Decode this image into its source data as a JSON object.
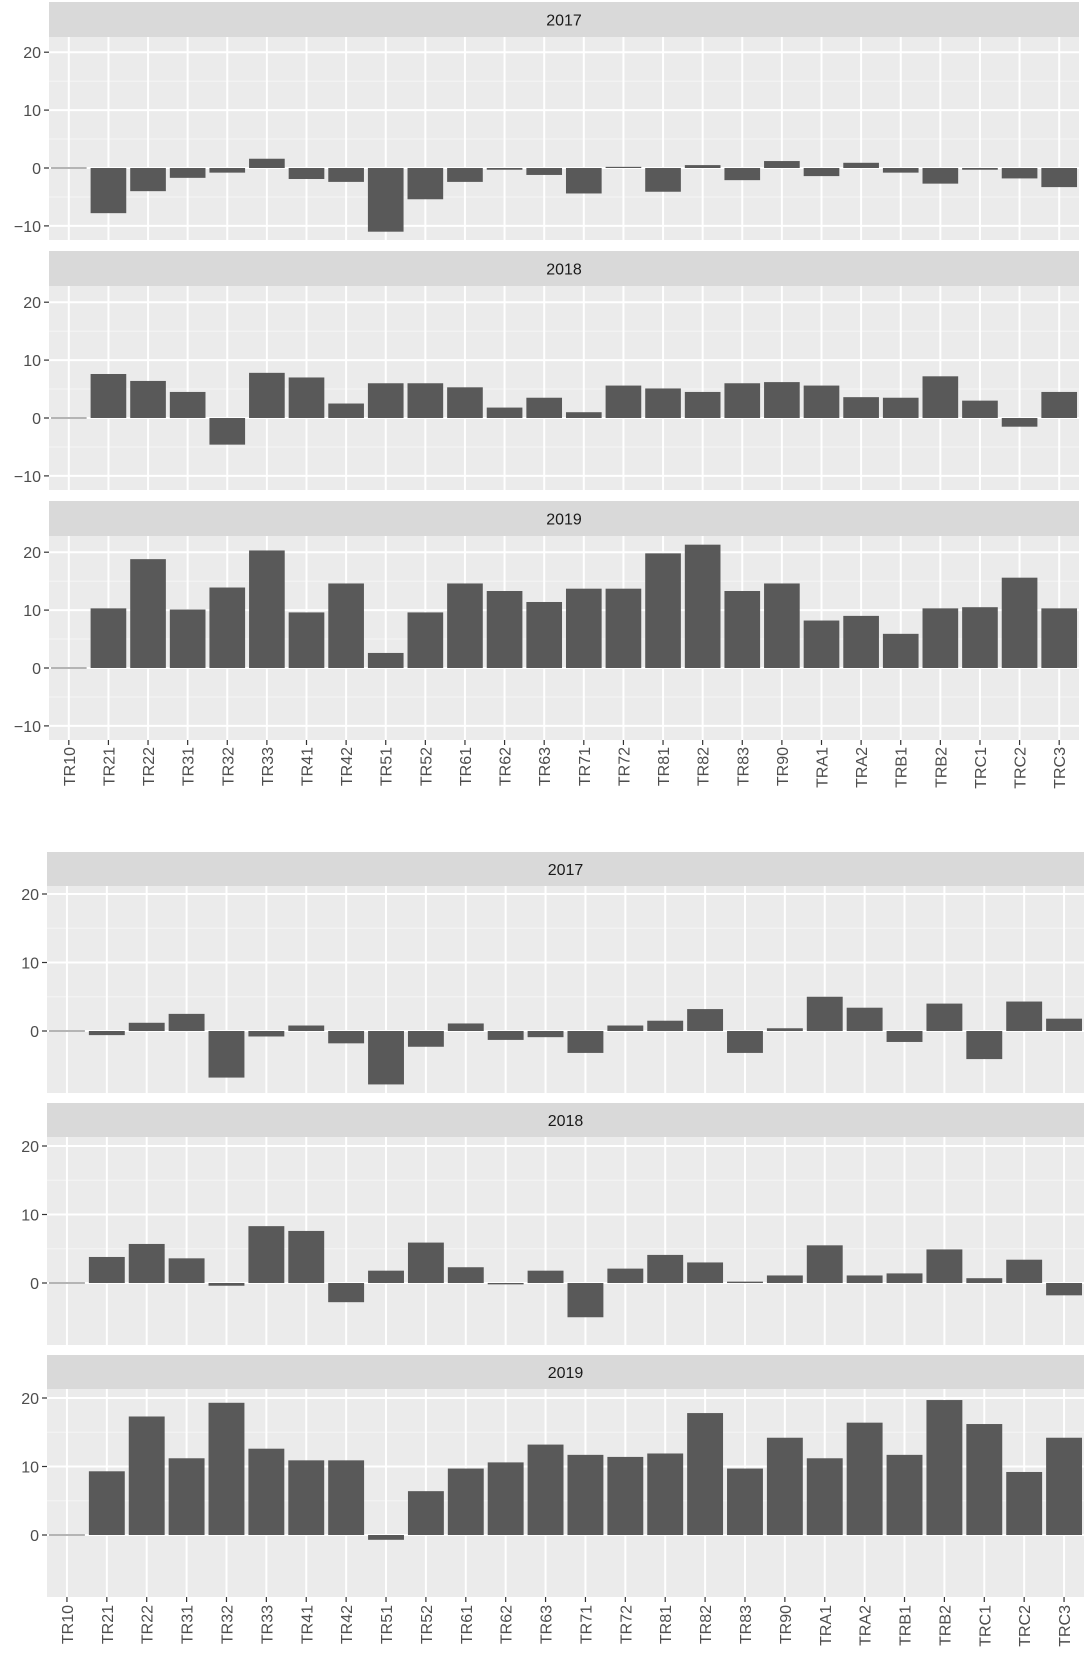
{
  "chart_data": [
    {
      "type": "bar",
      "facet_variable": "year",
      "categories": [
        "TR10",
        "TR21",
        "TR22",
        "TR31",
        "TR32",
        "TR33",
        "TR41",
        "TR42",
        "TR51",
        "TR52",
        "TR61",
        "TR62",
        "TR63",
        "TR71",
        "TR72",
        "TR81",
        "TR82",
        "TR83",
        "TR90",
        "TRA1",
        "TRA2",
        "TRB1",
        "TRB2",
        "TRC1",
        "TRC2",
        "TRC3"
      ],
      "ylim": [
        -12,
        22
      ],
      "yticks": [
        -10,
        0,
        10,
        20
      ],
      "ytick_labels": [
        "−10",
        "0",
        "10",
        "20"
      ],
      "grid": true,
      "bar_color": "#595959",
      "panel_background": "#ebebeb",
      "strip_background": "#d9d9d9",
      "panels": [
        {
          "label": "2017",
          "values": [
            0,
            -7.8,
            -4.0,
            -1.7,
            -0.8,
            1.6,
            -1.9,
            -2.4,
            -11.0,
            -5.4,
            -2.4,
            -0.3,
            -1.2,
            -4.4,
            0.2,
            -4.1,
            0.5,
            -2.1,
            1.2,
            -1.4,
            0.9,
            -0.8,
            -2.7,
            -0.3,
            -1.8,
            -3.3
          ]
        },
        {
          "label": "2018",
          "values": [
            0,
            7.6,
            6.4,
            4.5,
            -4.6,
            7.8,
            7.0,
            2.5,
            6.0,
            6.0,
            5.3,
            1.8,
            3.5,
            1.0,
            5.6,
            5.1,
            4.5,
            6.0,
            6.2,
            5.6,
            3.6,
            3.5,
            7.2,
            3.0,
            -1.5,
            4.5
          ]
        },
        {
          "label": "2019",
          "values": [
            0,
            10.3,
            18.8,
            10.1,
            13.9,
            20.3,
            9.6,
            14.6,
            2.6,
            9.6,
            14.6,
            13.3,
            11.4,
            13.7,
            13.7,
            19.8,
            21.3,
            13.3,
            14.6,
            8.2,
            9.0,
            5.9,
            10.3,
            10.5,
            15.6,
            10.3
          ]
        }
      ]
    },
    {
      "type": "bar",
      "facet_variable": "year",
      "categories": [
        "TR10",
        "TR21",
        "TR22",
        "TR31",
        "TR32",
        "TR33",
        "TR41",
        "TR42",
        "TR51",
        "TR52",
        "TR61",
        "TR62",
        "TR63",
        "TR71",
        "TR72",
        "TR81",
        "TR82",
        "TR83",
        "TR90",
        "TRA1",
        "TRA2",
        "TRB1",
        "TRB2",
        "TRC1",
        "TRC2",
        "TRC3"
      ],
      "ylim": [
        -9,
        21.5
      ],
      "yticks": [
        0,
        10,
        20
      ],
      "ytick_labels": [
        "0",
        "10",
        "20"
      ],
      "grid": true,
      "bar_color": "#595959",
      "panel_background": "#ebebeb",
      "strip_background": "#d9d9d9",
      "panels": [
        {
          "label": "2017",
          "values": [
            0,
            -0.6,
            1.2,
            2.5,
            -6.8,
            -0.8,
            0.8,
            -1.8,
            -7.8,
            -2.3,
            1.1,
            -1.3,
            -0.9,
            -3.2,
            0.8,
            1.5,
            3.2,
            -3.2,
            0.4,
            5.0,
            3.4,
            -1.6,
            4.0,
            -4.1,
            4.3,
            1.8
          ]
        },
        {
          "label": "2018",
          "values": [
            0,
            3.8,
            5.7,
            3.6,
            -0.4,
            8.3,
            7.6,
            -2.8,
            1.8,
            5.9,
            2.3,
            -0.2,
            1.8,
            -5.0,
            2.1,
            4.1,
            3.0,
            0.2,
            1.1,
            5.5,
            1.1,
            1.4,
            4.9,
            0.7,
            3.4,
            -1.8
          ]
        },
        {
          "label": "2019",
          "values": [
            0,
            9.3,
            17.3,
            11.2,
            19.3,
            12.6,
            10.9,
            10.9,
            -0.7,
            6.4,
            9.7,
            10.6,
            13.2,
            11.7,
            11.4,
            11.9,
            17.8,
            9.7,
            14.2,
            11.2,
            16.4,
            11.7,
            19.7,
            16.2,
            9.2,
            14.2
          ]
        }
      ]
    }
  ]
}
